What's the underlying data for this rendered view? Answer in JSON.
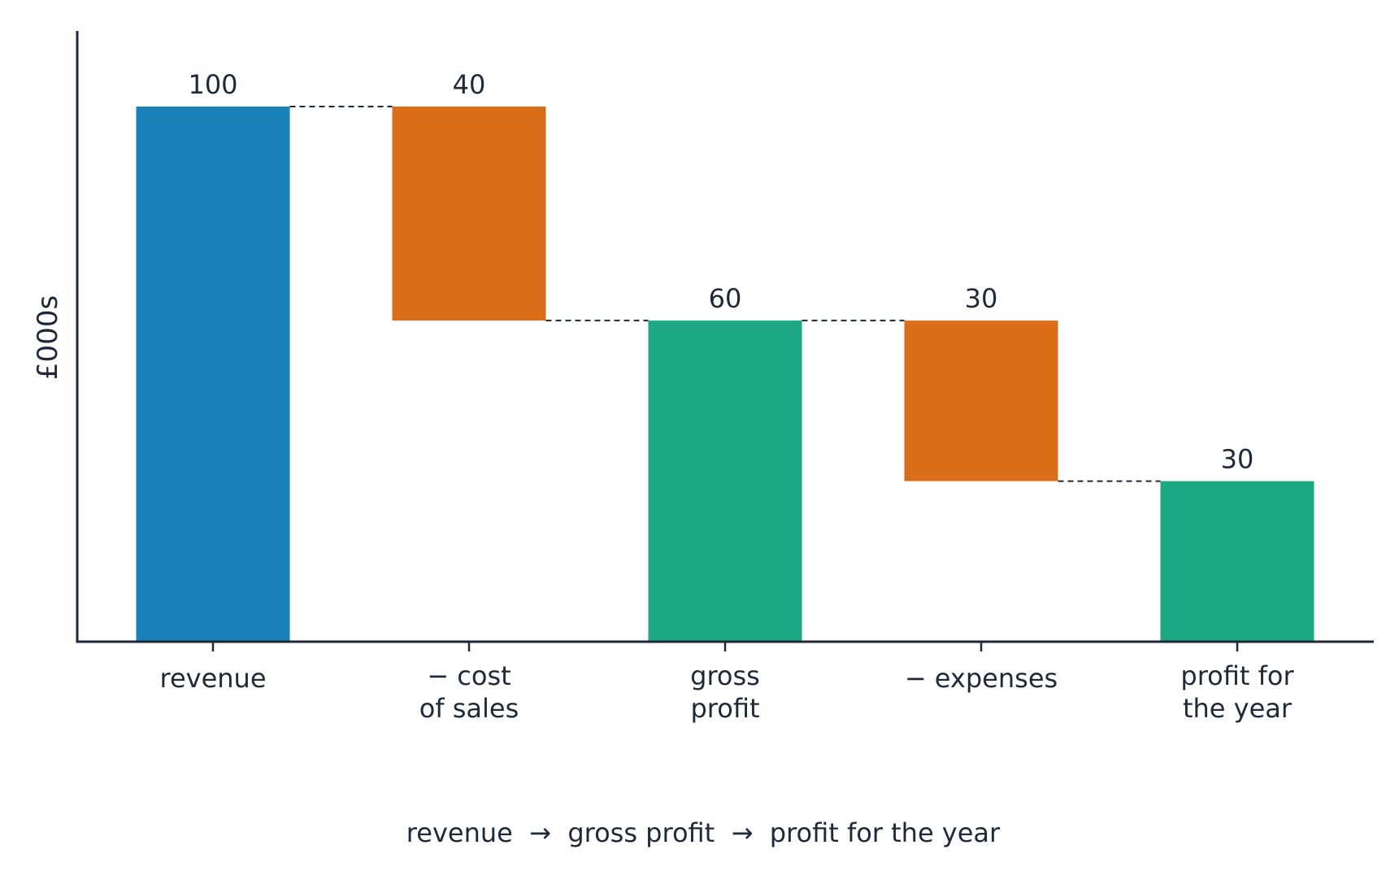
{
  "chart_data": {
    "type": "bar",
    "subtype": "waterfall",
    "categories": [
      "revenue",
      "− cost of sales",
      "gross profit",
      "− expenses",
      "profit for the year"
    ],
    "category_lines": [
      [
        "revenue"
      ],
      [
        "− cost",
        "of sales"
      ],
      [
        "gross",
        "profit"
      ],
      [
        "− expenses"
      ],
      [
        "profit for",
        "the year"
      ]
    ],
    "bars": [
      {
        "base": 0,
        "top": 100,
        "label": "100",
        "kind": "total"
      },
      {
        "base": 60,
        "top": 100,
        "label": "40",
        "kind": "decrease"
      },
      {
        "base": 0,
        "top": 60,
        "label": "60",
        "kind": "total"
      },
      {
        "base": 30,
        "top": 60,
        "label": "30",
        "kind": "decrease"
      },
      {
        "base": 0,
        "top": 30,
        "label": "30",
        "kind": "total"
      }
    ],
    "ylabel": "£000s",
    "xlabel": "",
    "ylim": [
      0,
      112
    ],
    "yticks_shown": false,
    "grid": false,
    "connectors": "dashed",
    "caption": "revenue  →  gross profit  →  profit for the year",
    "colors": {
      "first_total": "#1a80b8",
      "decrease": "#d96d18",
      "total": "#1ba882",
      "axis": "#1f2937",
      "text": "#1f2937"
    }
  }
}
